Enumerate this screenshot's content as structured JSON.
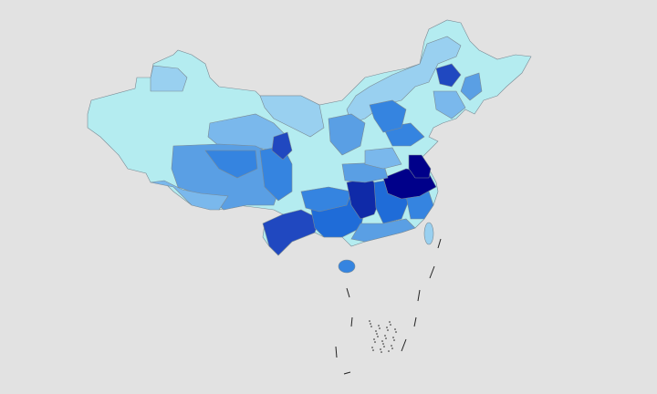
{
  "map": {
    "type": "choropleth",
    "background": "#e2e2e2",
    "border_color": "#7a8a94",
    "palette": [
      "#b4ecf0",
      "#99d0f0",
      "#7ab8ec",
      "#5a9fe4",
      "#3584e0",
      "#1f6cd8",
      "#2048c0",
      "#0f2aa8",
      "#00008a"
    ]
  }
}
